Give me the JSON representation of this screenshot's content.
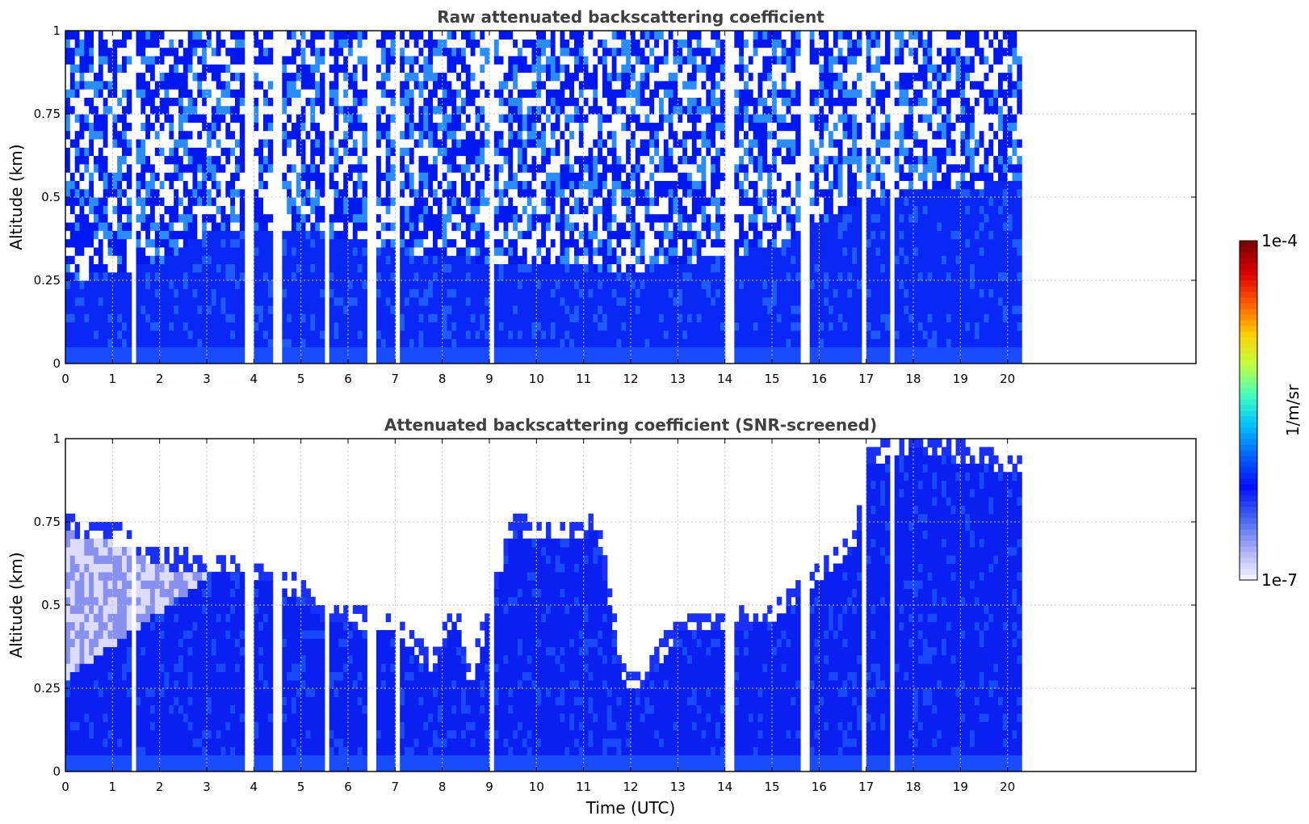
{
  "chart_data": [
    {
      "type": "heatmap",
      "title": "Raw attenuated backscattering coefficient",
      "xlabel": "",
      "ylabel": "Altitude (km)",
      "xlim": [
        0,
        24
      ],
      "ylim": [
        0,
        1
      ],
      "x_ticks": [
        "0",
        "1",
        "2",
        "3",
        "4",
        "5",
        "6",
        "7",
        "8",
        "9",
        "10",
        "11",
        "12",
        "13",
        "14",
        "15",
        "16",
        "17",
        "18",
        "19",
        "20"
      ],
      "y_ticks": [
        "0",
        "0.25",
        "0.5",
        "0.75",
        "1"
      ],
      "grid": true,
      "data_extent_hours": [
        0,
        20.3
      ],
      "gaps_hours": [
        1.45,
        3.9,
        4.5,
        5.55,
        6.5,
        7.05,
        9.05,
        14.1,
        15.7,
        16.95,
        17.55
      ],
      "noise_top_altitude_km": 1.0,
      "dense_layer_top_km": [
        {
          "x": 0,
          "y": 0.25
        },
        {
          "x": 2,
          "y": 0.3
        },
        {
          "x": 3,
          "y": 0.4
        },
        {
          "x": 5,
          "y": 0.4
        },
        {
          "x": 8,
          "y": 0.32
        },
        {
          "x": 12,
          "y": 0.28
        },
        {
          "x": 15,
          "y": 0.35
        },
        {
          "x": 17,
          "y": 0.5
        },
        {
          "x": 20.3,
          "y": 0.55
        }
      ]
    },
    {
      "type": "heatmap",
      "title": "Attenuated backscattering coefficient (SNR-screened)",
      "xlabel": "Time (UTC)",
      "ylabel": "Altitude (km)",
      "xlim": [
        0,
        24
      ],
      "ylim": [
        0,
        1
      ],
      "x_ticks": [
        "0",
        "1",
        "2",
        "3",
        "4",
        "5",
        "6",
        "7",
        "8",
        "9",
        "10",
        "11",
        "12",
        "13",
        "14",
        "15",
        "16",
        "17",
        "18",
        "19",
        "20"
      ],
      "y_ticks": [
        "0",
        "0.25",
        "0.5",
        "0.75",
        "1"
      ],
      "grid": true,
      "data_extent_hours": [
        0,
        20.3
      ],
      "boundary_layer_top_km": [
        {
          "x": 0,
          "y": 0.75
        },
        {
          "x": 1,
          "y": 0.72
        },
        {
          "x": 2,
          "y": 0.65
        },
        {
          "x": 3,
          "y": 0.62
        },
        {
          "x": 4,
          "y": 0.62
        },
        {
          "x": 5,
          "y": 0.55
        },
        {
          "x": 5.5,
          "y": 0.48
        },
        {
          "x": 6,
          "y": 0.47
        },
        {
          "x": 7,
          "y": 0.45
        },
        {
          "x": 7.8,
          "y": 0.32
        },
        {
          "x": 8.3,
          "y": 0.5
        },
        {
          "x": 8.6,
          "y": 0.28
        },
        {
          "x": 9.1,
          "y": 0.55
        },
        {
          "x": 9.5,
          "y": 0.75
        },
        {
          "x": 10.5,
          "y": 0.72
        },
        {
          "x": 11.3,
          "y": 0.75
        },
        {
          "x": 11.8,
          "y": 0.3
        },
        {
          "x": 12.2,
          "y": 0.26
        },
        {
          "x": 13,
          "y": 0.45
        },
        {
          "x": 14,
          "y": 0.45
        },
        {
          "x": 15,
          "y": 0.48
        },
        {
          "x": 16,
          "y": 0.6
        },
        {
          "x": 16.8,
          "y": 0.7
        },
        {
          "x": 17,
          "y": 0.95
        },
        {
          "x": 18,
          "y": 1.0
        },
        {
          "x": 20.3,
          "y": 0.92
        }
      ]
    }
  ],
  "colorbar": {
    "label": "1/m/sr",
    "min_label": "1e-7",
    "max_label": "1e-4",
    "colors": [
      "#f0f0ff",
      "#a0a8f8",
      "#4060f0",
      "#0010ff",
      "#0060ff",
      "#00c0ff",
      "#40ffc0",
      "#c0ff40",
      "#ffd000",
      "#ff6000",
      "#e00000",
      "#800000"
    ]
  }
}
